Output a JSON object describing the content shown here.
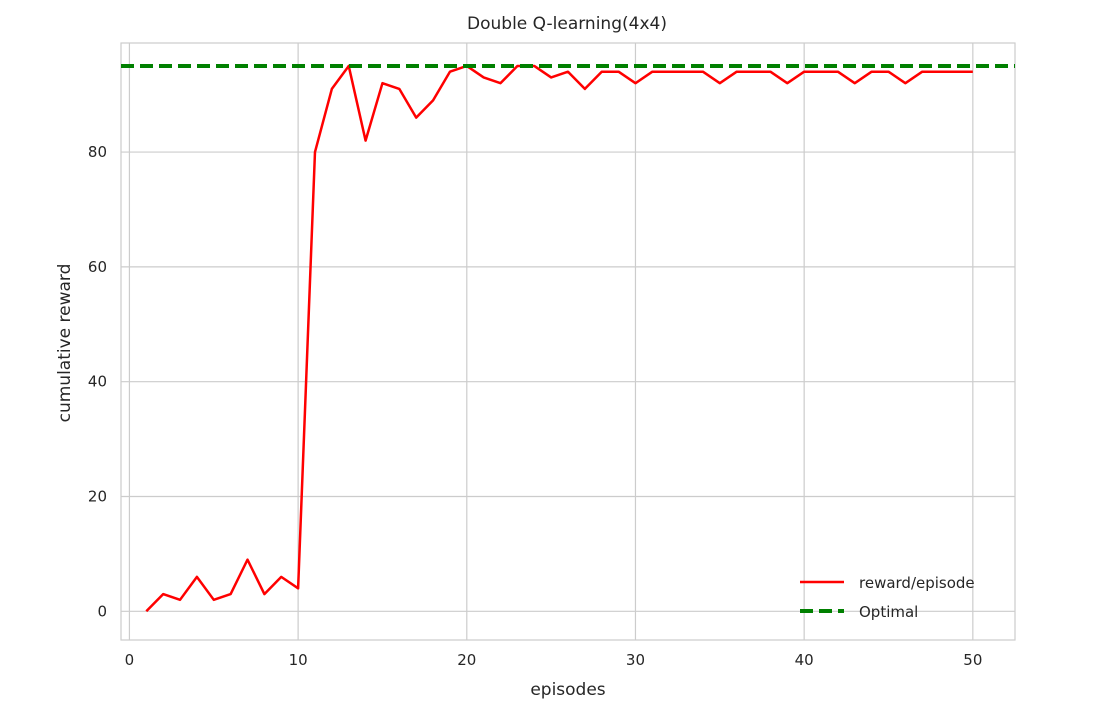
{
  "chart_data": {
    "type": "line",
    "title": "Double Q-learning(4x4)",
    "xlabel": "episodes",
    "ylabel": "cumulative reward",
    "xlim": [
      -0.5,
      52.5
    ],
    "ylim": [
      -5,
      99
    ],
    "xticks": [
      0,
      10,
      20,
      30,
      40,
      50
    ],
    "yticks": [
      0,
      20,
      40,
      60,
      80
    ],
    "grid": true,
    "legend_position": "lower-right",
    "series": [
      {
        "name": "reward/episode",
        "color": "#ff0000",
        "style": "solid",
        "x": [
          1,
          2,
          3,
          4,
          5,
          6,
          7,
          8,
          9,
          10,
          11,
          12,
          13,
          14,
          15,
          16,
          17,
          18,
          19,
          20,
          21,
          22,
          23,
          24,
          25,
          26,
          27,
          28,
          29,
          30,
          31,
          32,
          33,
          34,
          35,
          36,
          37,
          38,
          39,
          40,
          41,
          42,
          43,
          44,
          45,
          46,
          47,
          48,
          49,
          50
        ],
        "values": [
          0,
          3,
          2,
          6,
          2,
          3,
          9,
          3,
          6,
          4,
          80,
          91,
          95,
          82,
          92,
          91,
          86,
          89,
          94,
          95,
          93,
          92,
          95,
          95,
          93,
          94,
          91,
          94,
          94,
          92,
          94,
          94,
          94,
          94,
          92,
          94,
          94,
          94,
          92,
          94,
          94,
          94,
          92,
          94,
          94,
          92,
          94,
          94,
          94,
          94
        ]
      },
      {
        "name": "Optimal",
        "color": "#008000",
        "style": "dashed",
        "x": [
          -0.5,
          52.5
        ],
        "values": [
          95,
          95
        ]
      }
    ]
  }
}
